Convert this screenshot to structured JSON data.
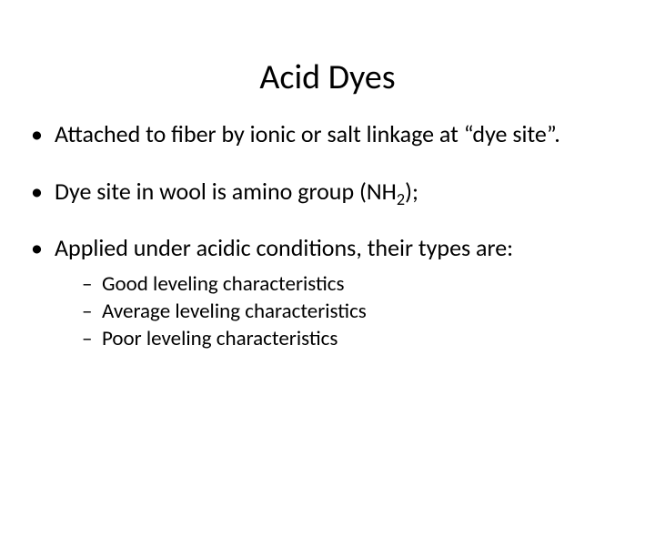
{
  "title": "Acid Dyes",
  "bullets": {
    "item1": "Attached to fiber by ionic or salt linkage at “dye site”.",
    "item2_pre": "Dye site in wool is amino group (NH",
    "item2_sub": "2",
    "item2_post": ");",
    "item3": "Applied under  acidic conditions, their types are:",
    "sub1": "Good leveling characteristics",
    "sub2": "Average leveling characteristics",
    "sub3": "Poor leveling characteristics"
  }
}
